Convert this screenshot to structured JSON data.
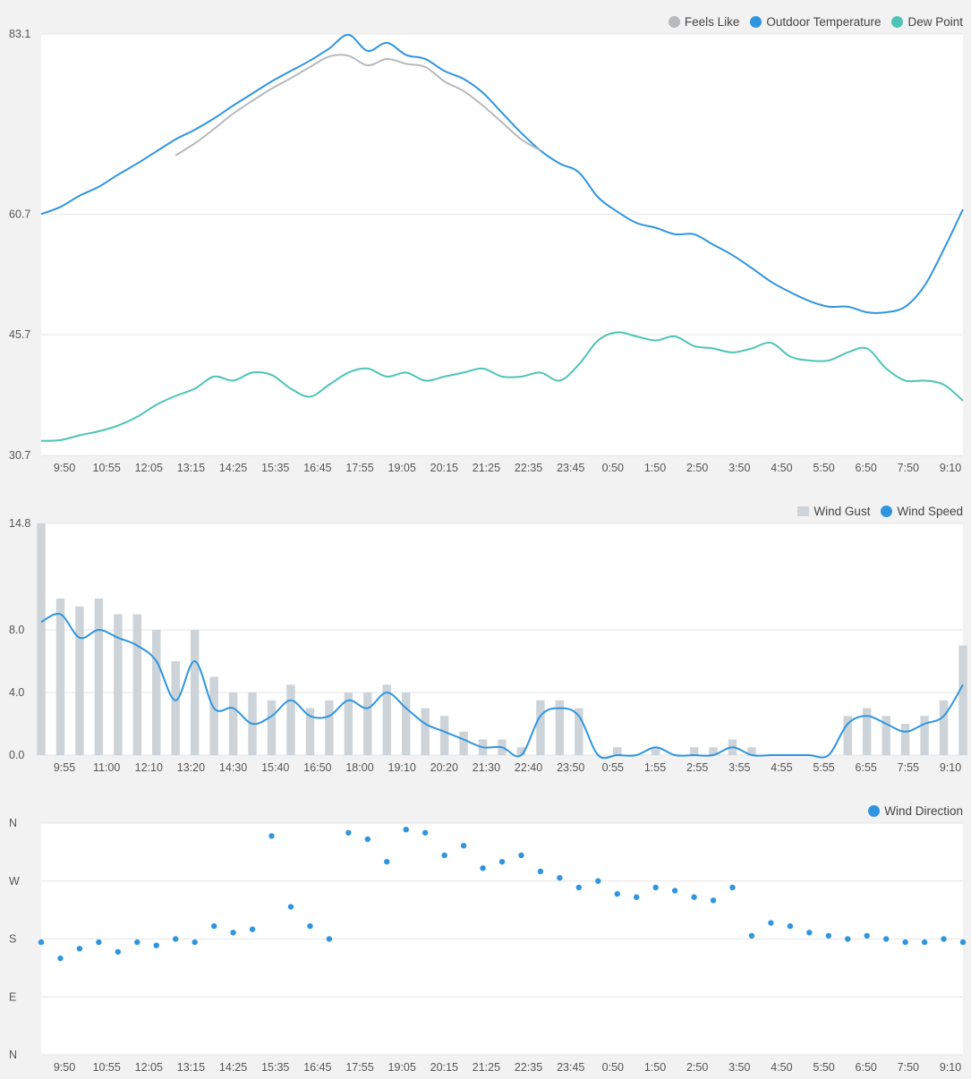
{
  "colors": {
    "feels_like": "#b6b9bd",
    "outdoor_temperature": "#2f95df",
    "dew_point": "#4dc4b6",
    "wind_gust": "#cdd4d9",
    "wind_speed": "#2f95df",
    "wind_direction": "#2f95df"
  },
  "chart_data": [
    {
      "type": "line",
      "title": "",
      "xlabel": "",
      "ylabel": "",
      "x_tick_labels": [
        "9:50",
        "10:55",
        "12:05",
        "13:15",
        "14:25",
        "15:35",
        "16:45",
        "17:55",
        "19:05",
        "20:15",
        "21:25",
        "22:35",
        "23:45",
        "0:50",
        "1:50",
        "2:50",
        "3:50",
        "4:50",
        "5:50",
        "6:50",
        "7:50",
        "9:10"
      ],
      "y_tick_labels": [
        "83.1",
        "60.7",
        "45.7",
        "30.7"
      ],
      "y_ticks": [
        83.1,
        60.7,
        45.7,
        30.7
      ],
      "ylim": [
        30.7,
        83.1
      ],
      "grid": true,
      "legend_placement": "top-right",
      "legend": [
        "Feels Like",
        "Outdoor Temperature",
        "Dew Point"
      ],
      "x_hours": [
        0,
        0.5,
        1,
        1.5,
        2,
        2.5,
        3,
        3.5,
        4,
        4.5,
        5,
        5.5,
        6,
        6.5,
        7,
        7.5,
        8,
        8.5,
        9,
        9.5,
        10,
        10.5,
        11,
        11.5,
        12,
        12.5,
        13,
        13.5,
        14,
        14.5,
        15,
        15.5,
        16,
        16.5,
        17,
        17.5,
        18,
        18.5,
        19,
        19.5,
        20,
        20.5,
        21,
        21.5,
        22,
        22.5,
        23,
        23.5,
        24
      ],
      "series": [
        {
          "name": "Outdoor Temperature",
          "key": "outdoor_temperature",
          "values": [
            60.7,
            61.6,
            63.0,
            64.1,
            65.6,
            67.0,
            68.5,
            70.0,
            71.2,
            72.6,
            74.2,
            75.7,
            77.2,
            78.5,
            79.8,
            81.3,
            83.0,
            81.0,
            82.0,
            80.5,
            80.0,
            78.5,
            77.5,
            75.8,
            73.3,
            70.8,
            68.6,
            67.0,
            65.9,
            62.8,
            61.0,
            59.6,
            59.0,
            58.2,
            58.2,
            56.9,
            55.6,
            54.0,
            52.3,
            51.0,
            49.9,
            49.2,
            49.2,
            48.5,
            48.5,
            49.2,
            51.8,
            56.3,
            61.3
          ]
        },
        {
          "name": "Feels Like",
          "key": "feels_like",
          "values": [
            null,
            null,
            null,
            null,
            null,
            null,
            null,
            68.0,
            69.5,
            71.3,
            73.2,
            74.8,
            76.3,
            77.6,
            79.0,
            80.3,
            80.4,
            79.2,
            80.0,
            79.4,
            79.0,
            77.2,
            76.0,
            74.2,
            72.1,
            70.0,
            68.6,
            null,
            null,
            null,
            null,
            null,
            null,
            null,
            null,
            null,
            null,
            null,
            null,
            null,
            null,
            null,
            null,
            null,
            null,
            null,
            null,
            null,
            null
          ]
        },
        {
          "name": "Dew Point",
          "key": "dew_point",
          "values": [
            32.5,
            32.6,
            33.2,
            33.7,
            34.4,
            35.5,
            37.0,
            38.1,
            39.0,
            40.5,
            40.0,
            41.0,
            40.7,
            39.0,
            38.0,
            39.5,
            41.0,
            41.5,
            40.5,
            41.0,
            40.0,
            40.5,
            41.0,
            41.5,
            40.5,
            40.5,
            41.0,
            40.0,
            42.0,
            45.0,
            46.0,
            45.5,
            45.0,
            45.5,
            44.3,
            44.0,
            43.5,
            44.0,
            44.7,
            43.0,
            42.5,
            42.5,
            43.5,
            44.0,
            41.5,
            40.0,
            40.0,
            39.5,
            37.5
          ]
        }
      ]
    },
    {
      "type": "bar",
      "title": "",
      "xlabel": "",
      "ylabel": "",
      "x_tick_labels": [
        "9:55",
        "11:00",
        "12:10",
        "13:20",
        "14:30",
        "15:40",
        "16:50",
        "18:00",
        "19:10",
        "20:20",
        "21:30",
        "22:40",
        "23:50",
        "0:55",
        "1:55",
        "2:55",
        "3:55",
        "4:55",
        "5:55",
        "6:55",
        "7:55",
        "9:10"
      ],
      "y_tick_labels": [
        "14.8",
        "8.0",
        "4.0",
        "0.0"
      ],
      "y_ticks": [
        14.8,
        8.0,
        4.0,
        0.0
      ],
      "ylim": [
        0,
        14.8
      ],
      "grid": true,
      "legend_placement": "top-right",
      "legend": [
        "Wind Gust",
        "Wind Speed"
      ],
      "x_hours": [
        0,
        0.5,
        1,
        1.5,
        2,
        2.5,
        3,
        3.5,
        4,
        4.5,
        5,
        5.5,
        6,
        6.5,
        7,
        7.5,
        8,
        8.5,
        9,
        9.5,
        10,
        10.5,
        11,
        11.5,
        12,
        12.5,
        13,
        13.5,
        14,
        14.5,
        15,
        15.5,
        16,
        16.5,
        17,
        17.5,
        18,
        18.5,
        19,
        19.5,
        20,
        20.5,
        21,
        21.5,
        22,
        22.5,
        23,
        23.5,
        24
      ],
      "series": [
        {
          "name": "Wind Gust",
          "key": "wind_gust",
          "render": "bars",
          "values": [
            14.8,
            10.0,
            9.5,
            10.0,
            9.0,
            9.0,
            8.0,
            6.0,
            8.0,
            5.0,
            4.0,
            4.0,
            3.5,
            4.5,
            3.0,
            3.5,
            4.0,
            4.0,
            4.5,
            4.0,
            3.0,
            2.5,
            1.5,
            1.0,
            1.0,
            0.5,
            3.5,
            3.5,
            3.0,
            0.0,
            0.5,
            0.0,
            0.5,
            0.0,
            0.5,
            0.5,
            1.0,
            0.5,
            0.0,
            0.0,
            0.0,
            0.0,
            2.5,
            3.0,
            2.5,
            2.0,
            2.5,
            3.5,
            7.0
          ]
        },
        {
          "name": "Wind Speed",
          "key": "wind_speed",
          "render": "line",
          "values": [
            8.5,
            9.0,
            7.5,
            8.0,
            7.5,
            7.0,
            6.0,
            3.5,
            6.0,
            3.0,
            3.0,
            2.0,
            2.5,
            3.5,
            2.5,
            2.5,
            3.5,
            3.0,
            4.0,
            3.0,
            2.0,
            1.5,
            1.0,
            0.5,
            0.5,
            0.0,
            2.5,
            3.0,
            2.5,
            0.0,
            0.0,
            0.0,
            0.5,
            0.0,
            0.0,
            0.0,
            0.5,
            0.0,
            0.0,
            0.0,
            0.0,
            0.0,
            2.0,
            2.5,
            2.0,
            1.5,
            2.0,
            2.5,
            4.5
          ]
        }
      ]
    },
    {
      "type": "scatter",
      "title": "",
      "xlabel": "",
      "ylabel": "",
      "x_tick_labels": [
        "9:50",
        "10:55",
        "12:05",
        "13:15",
        "14:25",
        "15:35",
        "16:45",
        "17:55",
        "19:05",
        "20:15",
        "21:25",
        "22:35",
        "23:45",
        "0:50",
        "1:50",
        "2:50",
        "3:50",
        "4:50",
        "5:50",
        "6:50",
        "7:50",
        "9:10"
      ],
      "y_tick_labels": [
        "N",
        "W",
        "S",
        "E",
        "N"
      ],
      "y_ticks": [
        360,
        270,
        180,
        90,
        0
      ],
      "ylim": [
        0,
        360
      ],
      "grid": true,
      "legend_placement": "top-right",
      "legend": [
        "Wind Direction"
      ],
      "x_hours": [
        0,
        0.5,
        1,
        1.5,
        2,
        2.5,
        3,
        3.5,
        4,
        4.5,
        5,
        5.5,
        6,
        6.5,
        7,
        7.5,
        8,
        8.5,
        9,
        9.5,
        10,
        10.5,
        11,
        11.5,
        12,
        12.5,
        13,
        13.5,
        14,
        14.5,
        15,
        15.5,
        16,
        16.5,
        17,
        17.5,
        18,
        18.5,
        19,
        19.5,
        20,
        20.5,
        21,
        21.5,
        22,
        22.5,
        23,
        23.5,
        24
      ],
      "series": [
        {
          "name": "Wind Direction",
          "key": "wind_direction",
          "values": [
            175,
            150,
            165,
            175,
            160,
            175,
            170,
            180,
            175,
            200,
            190,
            195,
            340,
            230,
            200,
            180,
            345,
            335,
            300,
            350,
            345,
            310,
            325,
            290,
            300,
            310,
            285,
            275,
            260,
            270,
            250,
            245,
            260,
            255,
            245,
            240,
            260,
            185,
            205,
            200,
            190,
            185,
            180,
            185,
            180,
            175,
            175,
            180,
            175
          ]
        }
      ]
    }
  ]
}
